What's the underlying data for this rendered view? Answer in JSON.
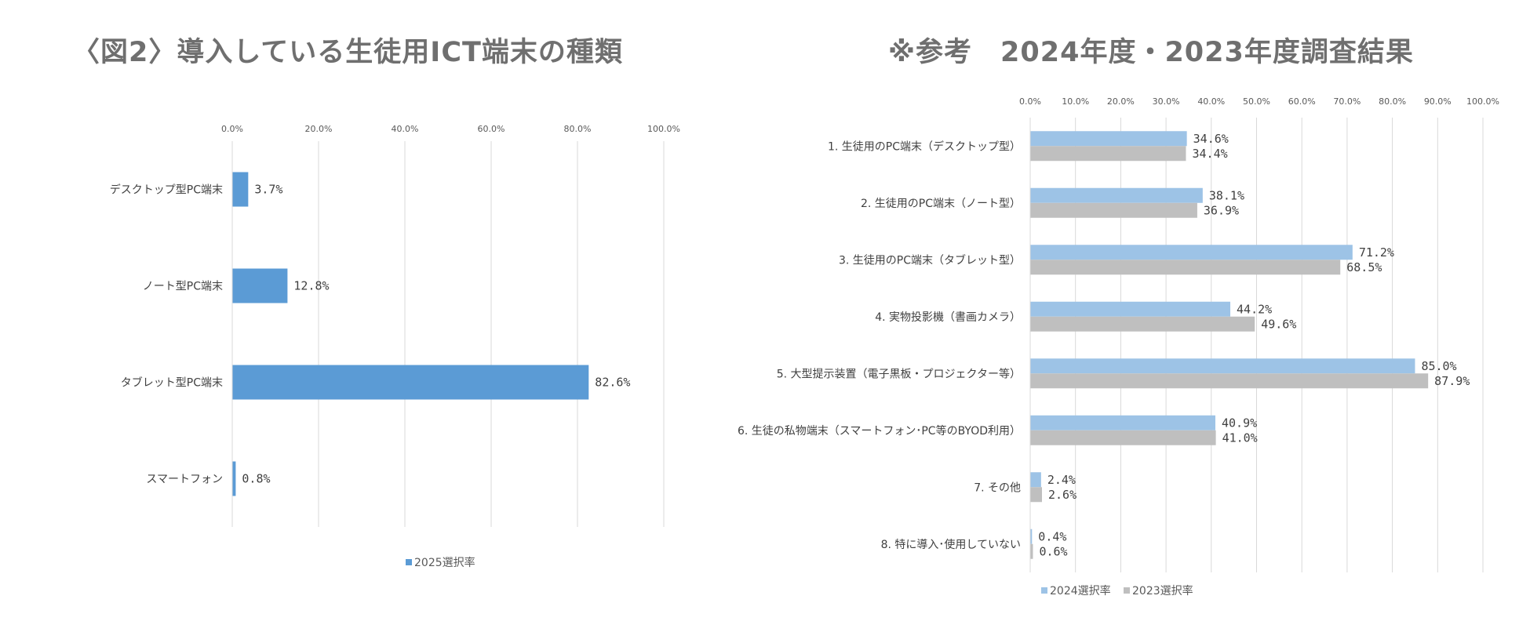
{
  "left": {
    "title": "〈図2〉導入している生徒用ICT端末の種類",
    "chart_data": {
      "type": "bar",
      "orientation": "horizontal",
      "xlim": [
        0,
        100
      ],
      "ticks": [
        "0.0%",
        "20.0%",
        "40.0%",
        "60.0%",
        "80.0%",
        "100.0%"
      ],
      "categories": [
        "デスクトップ型PC端末",
        "ノート型PC端末",
        "タブレット型PC端末",
        "スマートフォン"
      ],
      "series": [
        {
          "name": "2025選択率",
          "color": "#5b9bd5",
          "values": [
            3.7,
            12.8,
            82.6,
            0.8
          ],
          "labels": [
            "3.7%",
            "12.8%",
            "82.6%",
            "0.8%"
          ]
        }
      ],
      "legend": "bottom-center"
    }
  },
  "right": {
    "title": "※参考　2024年度・2023年度調査結果",
    "chart_data": {
      "type": "bar",
      "orientation": "horizontal",
      "xlim": [
        0,
        100
      ],
      "ticks": [
        "0.0%",
        "10.0%",
        "20.0%",
        "30.0%",
        "40.0%",
        "50.0%",
        "60.0%",
        "70.0%",
        "80.0%",
        "90.0%",
        "100.0%"
      ],
      "categories": [
        "1. 生徒用のPC端末（デスクトップ型）",
        "2. 生徒用のPC端末（ノート型）",
        "3. 生徒用のPC端末（タブレット型）",
        "4. 実物投影機（書画カメラ）",
        "5. 大型提示装置（電子黒板・プロジェクター等）",
        "6. 生徒の私物端末（スマートフォン･PC等のBYOD利用）",
        "7. その他",
        "8. 特に導入･使用していない"
      ],
      "series": [
        {
          "name": "2024選択率",
          "color": "#9dc3e6",
          "values": [
            34.6,
            38.1,
            71.2,
            44.2,
            85.0,
            40.9,
            2.4,
            0.4
          ],
          "labels": [
            "34.6%",
            "38.1%",
            "71.2%",
            "44.2%",
            "85.0%",
            "40.9%",
            "2.4%",
            "0.4%"
          ]
        },
        {
          "name": "2023選択率",
          "color": "#bfbfbf",
          "values": [
            34.4,
            36.9,
            68.5,
            49.6,
            87.9,
            41.0,
            2.6,
            0.6
          ],
          "labels": [
            "34.4%",
            "36.9%",
            "68.5%",
            "49.6%",
            "87.9%",
            "41.0%",
            "2.6%",
            "0.6%"
          ]
        }
      ],
      "legend": "bottom-center"
    }
  }
}
